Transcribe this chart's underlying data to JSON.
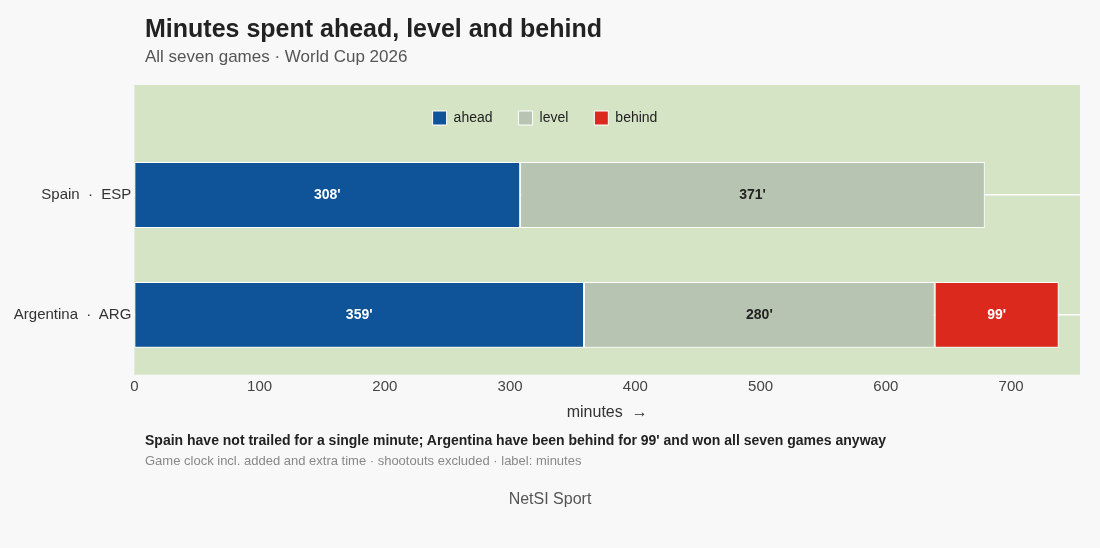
{
  "chart_data": {
    "type": "bar",
    "orientation": "horizontal",
    "stacked": true,
    "title": "Minutes spent ahead, level and behind",
    "subtitle": "All seven games · World Cup 2026",
    "xlabel": "minutes  →",
    "categories": [
      "Spain  ·  ESP",
      "Argentina  ·  ARG"
    ],
    "series": [
      {
        "name": "ahead",
        "color": "#0f5499",
        "values": [
          308,
          359
        ],
        "value_labels": [
          "308'",
          "359'"
        ]
      },
      {
        "name": "level",
        "color": "#b8c4b2",
        "values": [
          371,
          280
        ],
        "value_labels": [
          "371'",
          "280'"
        ]
      },
      {
        "name": "behind",
        "color": "#dc291e",
        "values": [
          null,
          99
        ],
        "value_labels": [
          null,
          "99'"
        ]
      }
    ],
    "xlim": [
      0,
      755
    ],
    "xticks": [
      0,
      100,
      200,
      300,
      400,
      500,
      600,
      700
    ],
    "grid": "y",
    "legend": "top",
    "annotations": [
      "Spain have not trailed for a single minute; Argentina have been behind for 99' and won all seven games anyway",
      "Game clock incl. added and extra time · shootouts excluded · label: minutes",
      "NetSI Sport"
    ]
  }
}
